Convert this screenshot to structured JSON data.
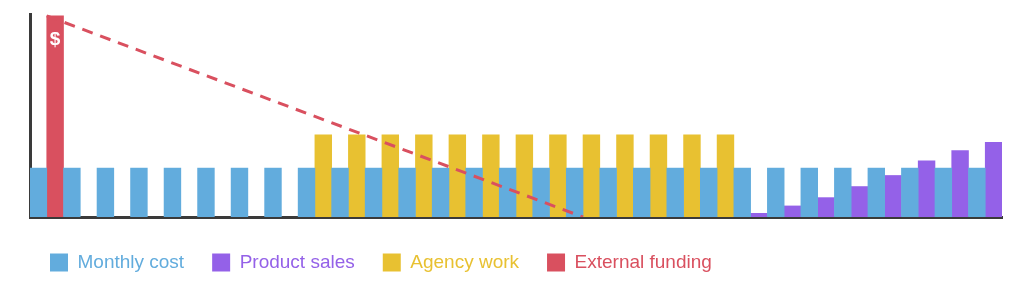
{
  "chart_data": {
    "type": "bar",
    "categories": [
      null,
      null,
      null,
      null,
      null,
      null,
      null,
      null,
      null,
      null,
      null,
      null,
      null,
      null,
      null,
      null,
      null,
      null,
      null,
      null,
      null,
      null,
      null,
      null,
      null,
      null,
      null,
      null,
      null
    ],
    "series": [
      {
        "name": "Monthly cost",
        "color": "#62acdd",
        "values": [
          53,
          53,
          53,
          53,
          53,
          53,
          53,
          53,
          53,
          53,
          53,
          53,
          53,
          53,
          53,
          53,
          53,
          53,
          53,
          53,
          53,
          53,
          53,
          53,
          53,
          53,
          53,
          53,
          53
        ]
      },
      {
        "name": "Product sales",
        "color": "#9461e8",
        "values": [
          null,
          null,
          null,
          null,
          null,
          null,
          null,
          null,
          null,
          null,
          null,
          null,
          null,
          null,
          null,
          null,
          null,
          null,
          null,
          null,
          null,
          4,
          12,
          21,
          33,
          45,
          61,
          72,
          81
        ]
      },
      {
        "name": "Agency work",
        "color": "#e8c131",
        "values": [
          null,
          null,
          null,
          null,
          null,
          null,
          null,
          null,
          89,
          89,
          89,
          89,
          89,
          89,
          89,
          89,
          89,
          89,
          89,
          89,
          89,
          null,
          null,
          null,
          null,
          null,
          null,
          null,
          null
        ]
      },
      {
        "name": "External funding",
        "color": "#d9505f",
        "values": [
          218,
          null,
          null,
          null,
          null,
          null,
          null,
          null,
          null,
          null,
          null,
          null,
          null,
          null,
          null,
          null,
          null,
          null,
          null,
          null,
          null,
          null,
          null,
          null,
          null,
          null,
          null,
          null,
          null
        ]
      },
      {
        "type": "line",
        "line_style": "dashed",
        "color": "#d9505f",
        "values": [
          218,
          null,
          null,
          null,
          null,
          null,
          null,
          null,
          null,
          null,
          null,
          null,
          null,
          null,
          null,
          null,
          0,
          null,
          null,
          null,
          null,
          null,
          null,
          null,
          null,
          null,
          null,
          null,
          null
        ]
      }
    ],
    "ylim": [
      0,
      220
    ],
    "yticks": [
      0
    ],
    "grid": false,
    "legend": "bottom-left",
    "tick_labels": false,
    "annotations": [
      {
        "text": "$",
        "series": "External funding",
        "index": 0
      }
    ]
  }
}
